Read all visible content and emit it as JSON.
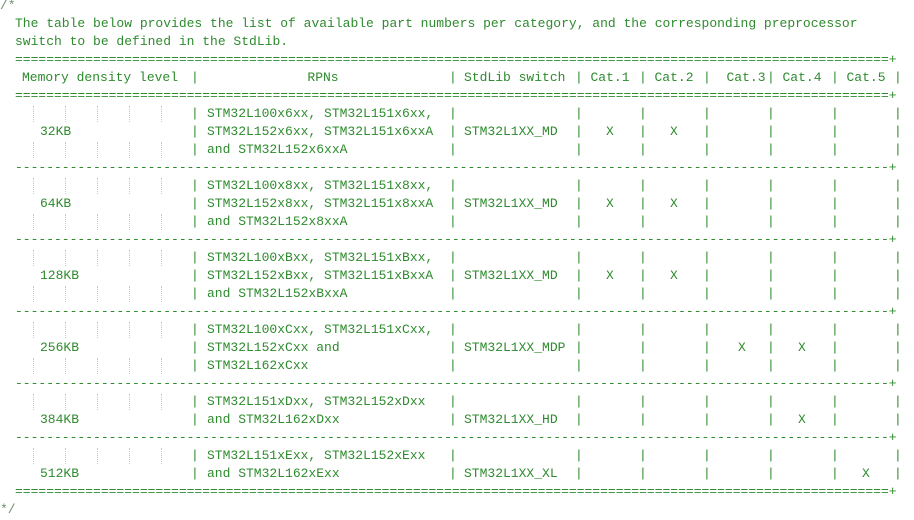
{
  "comment_open": "/*",
  "comment_close": "*/",
  "intro": [
    "The table below provides the list of available part numbers per category, and the corresponding preprocessor",
    "switch to be defined in the StdLib."
  ],
  "table": {
    "headers": [
      "Memory density level",
      "RPNs",
      "StdLib switch",
      "Cat.1",
      "Cat.2",
      "Cat.3",
      "Cat.4",
      "Cat.5"
    ],
    "rows": [
      {
        "memory": "32KB",
        "rpns": [
          "STM32L100x6xx, STM32L151x6xx,",
          "STM32L152x6xx, STM32L151x6xxA",
          "and STM32L152x6xxA"
        ],
        "switch": "STM32L1XX_MD",
        "cats": [
          "X",
          "X",
          "",
          "",
          ""
        ]
      },
      {
        "memory": "64KB",
        "rpns": [
          "STM32L100x8xx, STM32L151x8xx,",
          "STM32L152x8xx, STM32L151x8xxA",
          "and STM32L152x8xxA"
        ],
        "switch": "STM32L1XX_MD",
        "cats": [
          "X",
          "X",
          "",
          "",
          ""
        ]
      },
      {
        "memory": "128KB",
        "rpns": [
          "STM32L100xBxx, STM32L151xBxx,",
          "STM32L152xBxx, STM32L151xBxxA",
          "and STM32L152xBxxA"
        ],
        "switch": "STM32L1XX_MD",
        "cats": [
          "X",
          "X",
          "",
          "",
          ""
        ]
      },
      {
        "memory": "256KB",
        "rpns": [
          "STM32L100xCxx, STM32L151xCxx,",
          "STM32L152xCxx and",
          "STM32L162xCxx"
        ],
        "switch": "STM32L1XX_MDP",
        "cats": [
          "",
          "",
          "X",
          "X",
          ""
        ]
      },
      {
        "memory": "384KB",
        "rpns": [
          "STM32L151xDxx, STM32L152xDxx",
          "and STM32L162xDxx"
        ],
        "switch": "STM32L1XX_HD",
        "cats": [
          "",
          "",
          "",
          "X",
          ""
        ]
      },
      {
        "memory": "512KB",
        "rpns": [
          "STM32L151xExx, STM32L152xExx",
          "and STM32L162xExx"
        ],
        "switch": "STM32L1XX_XL",
        "cats": [
          "",
          "",
          "",
          "",
          "X"
        ]
      }
    ]
  },
  "colors": {
    "text": "#2e8b2e",
    "background": "#ffffff"
  }
}
